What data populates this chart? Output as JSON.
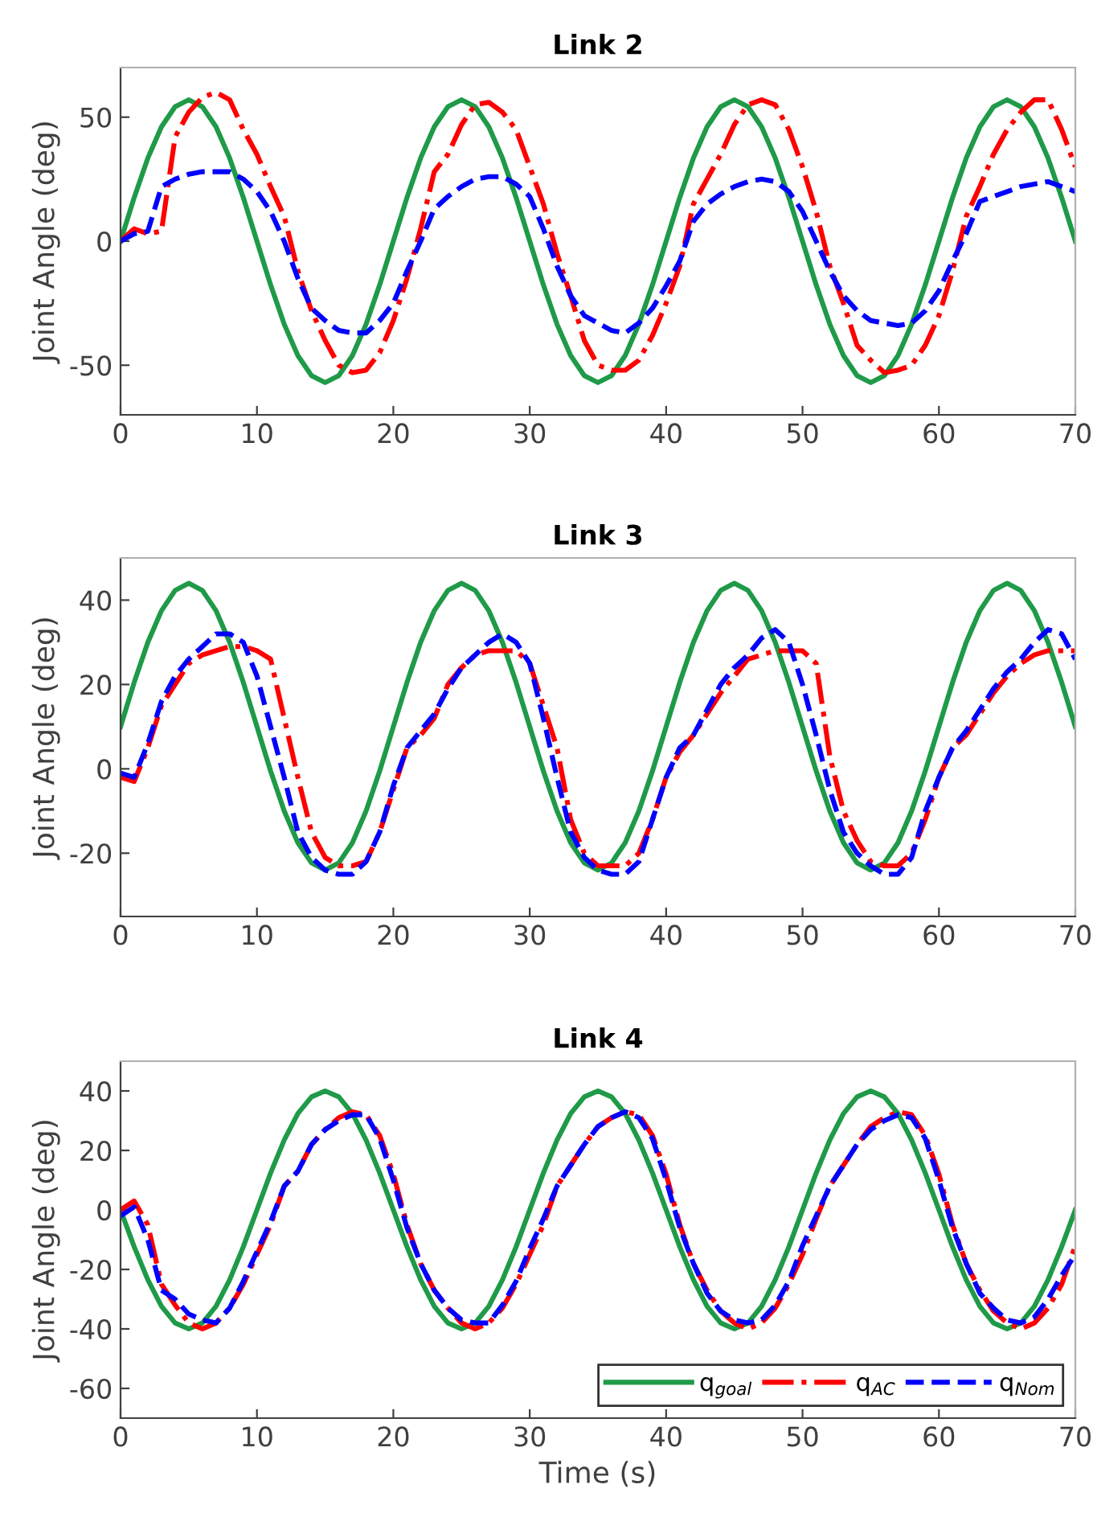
{
  "chart_data": [
    {
      "type": "line",
      "title": "Link 2",
      "ylabel": "Joint Angle (deg)",
      "xlim": [
        0,
        70
      ],
      "xticks": [
        0,
        10,
        20,
        30,
        40,
        50,
        60,
        70
      ],
      "ylim": [
        -70,
        70
      ],
      "yticks": [
        -50,
        0,
        50
      ],
      "grid": false,
      "legend": false,
      "x": [
        0,
        1,
        2,
        3,
        4,
        5,
        6,
        7,
        8,
        9,
        10,
        11,
        12,
        13,
        14,
        15,
        16,
        17,
        18,
        19,
        20,
        21,
        22,
        23,
        24,
        25,
        26,
        27,
        28,
        29,
        30,
        31,
        32,
        33,
        34,
        35,
        36,
        37,
        38,
        39,
        40,
        41,
        42,
        43,
        44,
        45,
        46,
        47,
        48,
        49,
        50,
        51,
        52,
        53,
        54,
        55,
        56,
        57,
        58,
        59,
        60,
        61,
        62,
        63,
        64,
        65,
        66,
        67,
        68,
        69,
        70
      ],
      "series": [
        {
          "color": "#1f9a48",
          "line_style": "solid",
          "values": [
            0,
            17.6,
            33.5,
            46.1,
            54.2,
            57,
            54.2,
            46.1,
            33.5,
            17.6,
            0,
            -17.6,
            -33.5,
            -46.1,
            -54.2,
            -57,
            -54.2,
            -46.1,
            -33.5,
            -17.6,
            0,
            17.6,
            33.5,
            46.1,
            54.2,
            57,
            54.2,
            46.1,
            33.5,
            17.6,
            0,
            -17.6,
            -33.5,
            -46.1,
            -54.2,
            -57,
            -54.2,
            -46.1,
            -33.5,
            -17.6,
            0,
            17.6,
            33.5,
            46.1,
            54.2,
            57,
            54.2,
            46.1,
            33.5,
            17.6,
            0,
            -17.6,
            -33.5,
            -46.1,
            -54.2,
            -57,
            -54.2,
            -46.1,
            -33.5,
            -17.6,
            0,
            17.6,
            33.5,
            46.1,
            54.2,
            57,
            54.2,
            46.1,
            33.5,
            17.6,
            0
          ]
        },
        {
          "color": "#ff0000",
          "line_style": "dashdot",
          "values": [
            0,
            5,
            3,
            4,
            42,
            52,
            58,
            60,
            57,
            45,
            35,
            22,
            10,
            -12,
            -28,
            -40,
            -50,
            -53,
            -52,
            -45,
            -32,
            -15,
            5,
            28,
            35,
            47,
            55,
            56,
            52,
            45,
            30,
            15,
            -5,
            -22,
            -40,
            -50,
            -52,
            -52,
            -48,
            -38,
            -25,
            -10,
            15,
            25,
            35,
            47,
            55,
            57,
            55,
            45,
            30,
            12,
            -10,
            -25,
            -42,
            -48,
            -53,
            -52,
            -50,
            -42,
            -30,
            -12,
            10,
            22,
            35,
            45,
            52,
            57,
            57,
            45,
            30
          ]
        },
        {
          "color": "#0000ff",
          "line_style": "dashed",
          "values": [
            0,
            3,
            4,
            22,
            25,
            27,
            28,
            28,
            28,
            25,
            20,
            12,
            0,
            -15,
            -27,
            -32,
            -36,
            -37,
            -37,
            -32,
            -25,
            -12,
            0,
            13,
            18,
            22,
            25,
            26,
            26,
            23,
            18,
            5,
            -10,
            -22,
            -30,
            -33,
            -36,
            -37,
            -33,
            -27,
            -18,
            -8,
            8,
            15,
            19,
            22,
            24,
            25,
            24,
            20,
            12,
            0,
            -12,
            -22,
            -28,
            -32,
            -33,
            -34,
            -33,
            -28,
            -20,
            -8,
            3,
            16,
            18,
            20,
            22,
            23,
            24,
            22,
            20
          ]
        }
      ]
    },
    {
      "type": "line",
      "title": "Link 3",
      "ylabel": "Joint Angle (deg)",
      "xlim": [
        0,
        70
      ],
      "xticks": [
        0,
        10,
        20,
        30,
        40,
        50,
        60,
        70
      ],
      "ylim": [
        -35,
        50
      ],
      "yticks": [
        -20,
        0,
        20,
        40
      ],
      "grid": false,
      "legend": false,
      "x": [
        0,
        1,
        2,
        3,
        4,
        5,
        6,
        7,
        8,
        9,
        10,
        11,
        12,
        13,
        14,
        15,
        16,
        17,
        18,
        19,
        20,
        21,
        22,
        23,
        24,
        25,
        26,
        27,
        28,
        29,
        30,
        31,
        32,
        33,
        34,
        35,
        36,
        37,
        38,
        39,
        40,
        41,
        42,
        43,
        44,
        45,
        46,
        47,
        48,
        49,
        50,
        51,
        52,
        53,
        54,
        55,
        56,
        57,
        58,
        59,
        60,
        61,
        62,
        63,
        64,
        65,
        66,
        67,
        68,
        69,
        70
      ],
      "series": [
        {
          "color": "#1f9a48",
          "line_style": "solid",
          "values": [
            10,
            20.5,
            30,
            37.5,
            42.3,
            44,
            42.3,
            37.5,
            30,
            20.5,
            10,
            -0.5,
            -10,
            -17.5,
            -22.3,
            -24,
            -22.3,
            -17.5,
            -10,
            -0.5,
            10,
            20.5,
            30,
            37.5,
            42.3,
            44,
            42.3,
            37.5,
            30,
            20.5,
            10,
            -0.5,
            -10,
            -17.5,
            -22.3,
            -24,
            -22.3,
            -17.5,
            -10,
            -0.5,
            10,
            20.5,
            30,
            37.5,
            42.3,
            44,
            42.3,
            37.5,
            30,
            20.5,
            10,
            -0.5,
            -10,
            -17.5,
            -22.3,
            -24,
            -22.3,
            -17.5,
            -10,
            -0.5,
            10,
            20.5,
            30,
            37.5,
            42.3,
            44,
            42.3,
            37.5,
            30,
            20.5,
            10
          ]
        },
        {
          "color": "#ff0000",
          "line_style": "dashdot",
          "values": [
            -2,
            -3,
            5,
            15,
            20,
            25,
            27,
            28,
            29,
            29,
            28,
            26,
            12,
            -2,
            -15,
            -21,
            -23,
            -23,
            -22,
            -15,
            -5,
            5,
            8,
            12,
            20,
            24,
            27,
            28,
            28,
            28,
            25,
            15,
            5,
            -12,
            -20,
            -23,
            -23,
            -23,
            -20,
            -12,
            -2,
            4,
            8,
            13,
            18,
            22,
            26,
            27,
            28,
            28,
            28,
            25,
            3,
            -10,
            -17,
            -22,
            -23,
            -23,
            -20,
            -12,
            -2,
            5,
            8,
            13,
            18,
            22,
            25,
            27,
            28,
            28,
            28
          ]
        },
        {
          "color": "#0000ff",
          "line_style": "dashed",
          "values": [
            -1,
            -2,
            6,
            16,
            22,
            26,
            29,
            32,
            32,
            30,
            22,
            10,
            -2,
            -15,
            -21,
            -24,
            -25,
            -25,
            -22,
            -15,
            -4,
            5,
            9,
            13,
            19,
            24,
            27,
            30,
            32,
            30,
            25,
            12,
            -2,
            -15,
            -21,
            -24,
            -25,
            -25,
            -22,
            -12,
            -2,
            5,
            8,
            14,
            20,
            24,
            27,
            31,
            33,
            30,
            20,
            8,
            -5,
            -15,
            -20,
            -23,
            -25,
            -25,
            -21,
            -10,
            -2,
            5,
            9,
            14,
            19,
            23,
            26,
            30,
            33,
            32,
            26
          ]
        }
      ]
    },
    {
      "type": "line",
      "title": "Link 4",
      "xlabel": "Time (s)",
      "ylabel": "Joint Angle (deg)",
      "xlim": [
        0,
        70
      ],
      "xticks": [
        0,
        10,
        20,
        30,
        40,
        50,
        60,
        70
      ],
      "ylim": [
        -70,
        50
      ],
      "yticks": [
        -60,
        -40,
        -20,
        0,
        20,
        40
      ],
      "grid": false,
      "legend": "bottom right",
      "x": [
        0,
        1,
        2,
        3,
        4,
        5,
        6,
        7,
        8,
        9,
        10,
        11,
        12,
        13,
        14,
        15,
        16,
        17,
        18,
        19,
        20,
        21,
        22,
        23,
        24,
        25,
        26,
        27,
        28,
        29,
        30,
        31,
        32,
        33,
        34,
        35,
        36,
        37,
        38,
        39,
        40,
        41,
        42,
        43,
        44,
        45,
        46,
        47,
        48,
        49,
        50,
        51,
        52,
        53,
        54,
        55,
        56,
        57,
        58,
        59,
        60,
        61,
        62,
        63,
        64,
        65,
        66,
        67,
        68,
        69,
        70
      ],
      "series": [
        {
          "name": "q$_{goal}$",
          "color": "#1f9a48",
          "line_style": "solid",
          "values": [
            0,
            -12.4,
            -23.5,
            -32.4,
            -38,
            -40,
            -38,
            -32.4,
            -23.5,
            -12.4,
            0,
            12.4,
            23.5,
            32.4,
            38,
            40,
            38,
            32.4,
            23.5,
            12.4,
            0,
            -12.4,
            -23.5,
            -32.4,
            -38,
            -40,
            -38,
            -32.4,
            -23.5,
            -12.4,
            0,
            12.4,
            23.5,
            32.4,
            38,
            40,
            38,
            32.4,
            23.5,
            12.4,
            0,
            -12.4,
            -23.5,
            -32.4,
            -38,
            -40,
            -38,
            -32.4,
            -23.5,
            -12.4,
            0,
            12.4,
            23.5,
            32.4,
            38,
            40,
            38,
            32.4,
            23.5,
            12.4,
            0,
            -12.4,
            -23.5,
            -32.4,
            -38,
            -40,
            -38,
            -32.4,
            -23.5,
            -12.4,
            0
          ]
        },
        {
          "name": "q$_{AC}$",
          "color": "#ff0000",
          "line_style": "dashdot",
          "values": [
            0,
            3,
            -5,
            -25,
            -32,
            -38,
            -40,
            -38,
            -33,
            -25,
            -15,
            -5,
            8,
            13,
            22,
            27,
            31,
            33,
            32,
            25,
            12,
            -5,
            -18,
            -27,
            -33,
            -38,
            -40,
            -38,
            -33,
            -25,
            -15,
            -5,
            8,
            15,
            22,
            28,
            31,
            33,
            32,
            25,
            12,
            -5,
            -18,
            -27,
            -34,
            -38,
            -40,
            -38,
            -33,
            -25,
            -15,
            -3,
            8,
            15,
            22,
            28,
            31,
            33,
            32,
            25,
            12,
            -5,
            -18,
            -27,
            -34,
            -38,
            -40,
            -38,
            -33,
            -25,
            -12
          ]
        },
        {
          "name": "q$_{Nom}$",
          "color": "#0000ff",
          "line_style": "dashed",
          "values": [
            -2,
            1,
            -10,
            -27,
            -30,
            -35,
            -37,
            -38,
            -33,
            -24,
            -14,
            -4,
            8,
            13,
            22,
            27,
            30,
            32,
            32,
            24,
            10,
            -6,
            -18,
            -27,
            -33,
            -37,
            -38,
            -38,
            -32,
            -24,
            -13,
            -3,
            8,
            15,
            22,
            28,
            31,
            33,
            31,
            24,
            10,
            -6,
            -18,
            -28,
            -34,
            -37,
            -38,
            -37,
            -32,
            -24,
            -12,
            -2,
            8,
            15,
            22,
            27,
            30,
            32,
            31,
            24,
            10,
            -6,
            -18,
            -28,
            -33,
            -37,
            -38,
            -36,
            -30,
            -22,
            -15
          ]
        }
      ]
    }
  ]
}
